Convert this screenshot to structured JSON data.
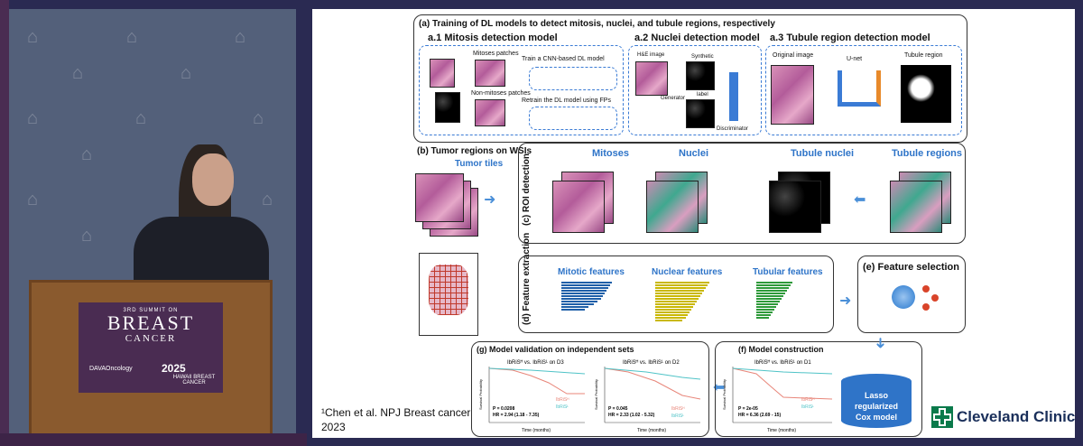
{
  "podium": {
    "summit_line": "3RD SUMMIT ON",
    "title": "BREAST",
    "subtitle": "CANCER",
    "logo_left": "DAVAOncology",
    "logo_right_year": "2025",
    "logo_right_place": "HAWAII",
    "logo_right_sub": "BREAST CANCER"
  },
  "slide": {
    "a_title": "(a) Training of DL models to detect mitosis, nuclei, and tubule regions, respectively",
    "a1": {
      "title": "a.1  Mitosis detection model",
      "mitoses_patches": "Mitoses patches",
      "non_mitoses_patches": "Non-mitoses patches",
      "train_label": "Train a CNN-based DL model",
      "retrain_label": "Retrain the DL model using FPs"
    },
    "a2": {
      "title": "a.2  Nuclei detection model",
      "he_image": "H&E image",
      "synthetic": "Synthetic",
      "generator": "Generator",
      "label": "label",
      "discriminator": "Discriminator"
    },
    "a3": {
      "title": "a.3  Tubule region detection model",
      "original": "Original image",
      "unet": "U-net",
      "tubule_region": "Tubule region"
    },
    "b_title": "(b) Tumor regions on WSIs",
    "tumor_tiles": "Tumor tiles",
    "c_label": "(c)  ROI detection",
    "c_mitoses": "Mitoses",
    "c_nuclei": "Nuclei",
    "c_tubule_nuclei": "Tubule nuclei",
    "c_tubule_regions": "Tubule regions",
    "d_label": "(d)  Feature extraction",
    "d_mitotic": "Mitotic features",
    "d_nuclear": "Nuclear features",
    "d_tubular": "Tubular features",
    "e_title": "(e) Feature selection",
    "f_title": "(f)  Model construction",
    "f_sub": "IbRiSᴴ vs. IbRiSᴸ on D1",
    "f_p": "P = 2e-05",
    "f_hr": "HR = 6.36 (2.69 - 15)",
    "g_title": "(g)  Model validation on independent sets",
    "g1_sub": "IbRiSᴴ vs. IbRiSᴸ on D3",
    "g1_p": "P = 0.0208",
    "g1_hr": "HR = 2.94 (1.18 - 7.35)",
    "g2_sub": "IbRiSᴴ vs. IbRiSᴸ on D2",
    "g2_p": "P = 0.045",
    "g2_hr": "HR = 2.33 (1.02 - 5.32)",
    "legend_high": "IbRiSᴴ",
    "legend_low": "IbRiSᴸ",
    "y_axis": "Survival Probability",
    "x_axis": "Time (months)",
    "lasso": "Lasso regularized Cox model",
    "citation_line1": "¹Chen et al. NPJ Breast cancer",
    "citation_line2": "2023",
    "brand": "Cleveland Clinic",
    "colors": {
      "accent_blue": "#2e74c8",
      "high_risk": "#e8867a",
      "low_risk": "#4fc3c7",
      "brand_green": "#0a7a4b"
    }
  }
}
